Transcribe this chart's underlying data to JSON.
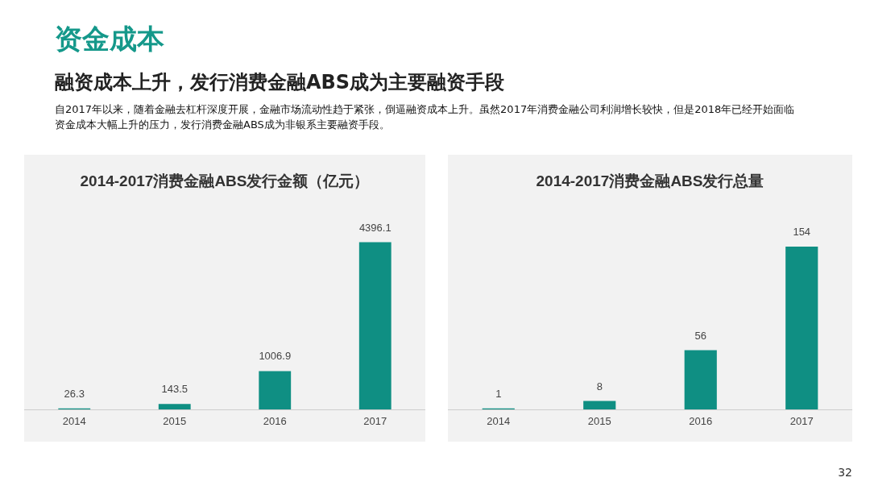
{
  "chart_data": [
    {
      "type": "bar",
      "title": "2014-2017消费金融ABS发行金额（亿元）",
      "categories": [
        "2014",
        "2015",
        "2016",
        "2017"
      ],
      "values": [
        26.3,
        143.5,
        1006.9,
        4396.1
      ],
      "color": "#0f8f83",
      "data_labels": true,
      "tick_labels": "x",
      "annotations": [
        "资金成本",
        "融资成本上升，发行消费金融ABS成为主要融资手段",
        "自2017年以来，随着金融去杠杆深度开展，金融市场流动性趋于紧张，倒逼融资成本上升。虽然2017年消费金融公司利润增长较快，但是2018年已经开始面临资金成本大幅上升的压力，发行消费金融ABS成为非银系主要融资手段。",
        "32"
      ]
    },
    {
      "type": "bar",
      "title": "2014-2017消费金融ABS发行总量",
      "categories": [
        "2014",
        "2015",
        "2016",
        "2017"
      ],
      "values": [
        1,
        8,
        56,
        154
      ],
      "color": "#0f8f83",
      "data_labels": true,
      "tick_labels": "x"
    }
  ]
}
